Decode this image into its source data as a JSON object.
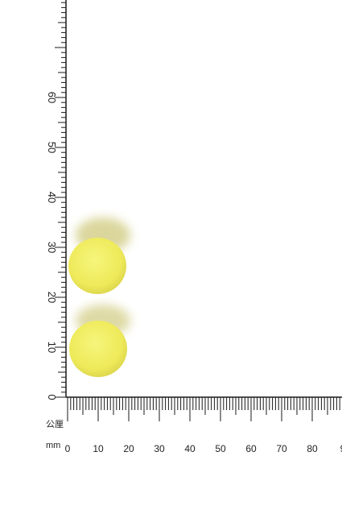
{
  "photo": {
    "subject": "two yellow round tablets next to an L-shaped millimetre ruler"
  },
  "ruler": {
    "unit_top": "公厘",
    "unit_bottom": "mm",
    "vertical_labels": [
      "0",
      "10",
      "20",
      "30",
      "40",
      "50",
      "60"
    ],
    "horizontal_labels": [
      "0",
      "10",
      "20",
      "30",
      "40",
      "50",
      "60",
      "70",
      "80",
      "9"
    ]
  },
  "colors": {
    "tablet": "#f1ef62",
    "tablet_shadow": "#c8c248",
    "ruler_ink": "#1a1a1a",
    "background": "#ffffff"
  }
}
